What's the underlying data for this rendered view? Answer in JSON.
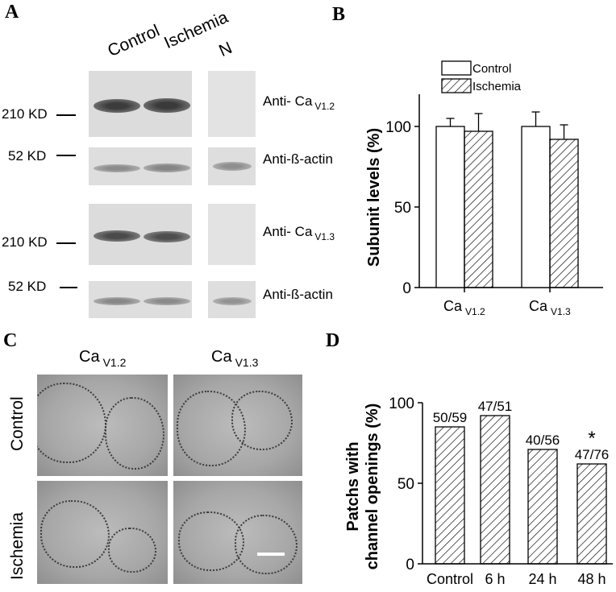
{
  "panels": {
    "a": {
      "letter": "A",
      "lanes": [
        "Control",
        "Ischemia",
        "N"
      ],
      "blots": [
        {
          "kd": "210 KD",
          "antibody": "Anti- Ca",
          "subscript": "V1.2"
        },
        {
          "kd": "52 KD",
          "antibody": "Anti-ß-actin",
          "subscript": ""
        },
        {
          "kd": "210 KD",
          "antibody": "Anti- Ca",
          "subscript": "V1.3"
        },
        {
          "kd": "52 KD",
          "antibody": "Anti-ß-actin",
          "subscript": ""
        }
      ]
    },
    "b": {
      "letter": "B"
    },
    "c": {
      "letter": "C",
      "columns": [
        {
          "main": "Ca",
          "sub": "V1.2"
        },
        {
          "main": "Ca",
          "sub": "V1.3"
        }
      ],
      "rows": [
        "Control",
        "Ischemia"
      ]
    },
    "d": {
      "letter": "D"
    }
  },
  "chart_data": [
    {
      "panel": "B",
      "type": "bar",
      "categories": [
        {
          "main": "Ca",
          "sub": "V1.2"
        },
        {
          "main": "Ca",
          "sub": "V1.3"
        }
      ],
      "series": [
        {
          "name": "Control",
          "values": [
            100,
            100
          ],
          "errors": [
            5,
            9
          ],
          "fill": "white"
        },
        {
          "name": "Ischemia",
          "values": [
            97,
            92
          ],
          "errors": [
            11,
            9
          ],
          "fill": "hatched"
        }
      ],
      "ylabel": "Subunit levels (%)",
      "ylim": [
        0,
        120
      ],
      "yticks": [
        0,
        50,
        100
      ],
      "legend_position": "top-left"
    },
    {
      "panel": "D",
      "type": "bar",
      "categories": [
        "Control",
        "6 h",
        "24 h",
        "48 h"
      ],
      "values": [
        85,
        92,
        71,
        62
      ],
      "data_labels": [
        "50/59",
        "47/51",
        "40/56",
        "47/76"
      ],
      "significance": [
        "",
        "",
        "",
        "*"
      ],
      "ylabel_lines": [
        "Patchs with",
        "channel openings (%)"
      ],
      "ylim": [
        0,
        100
      ],
      "yticks": [
        0,
        50,
        100
      ]
    }
  ]
}
